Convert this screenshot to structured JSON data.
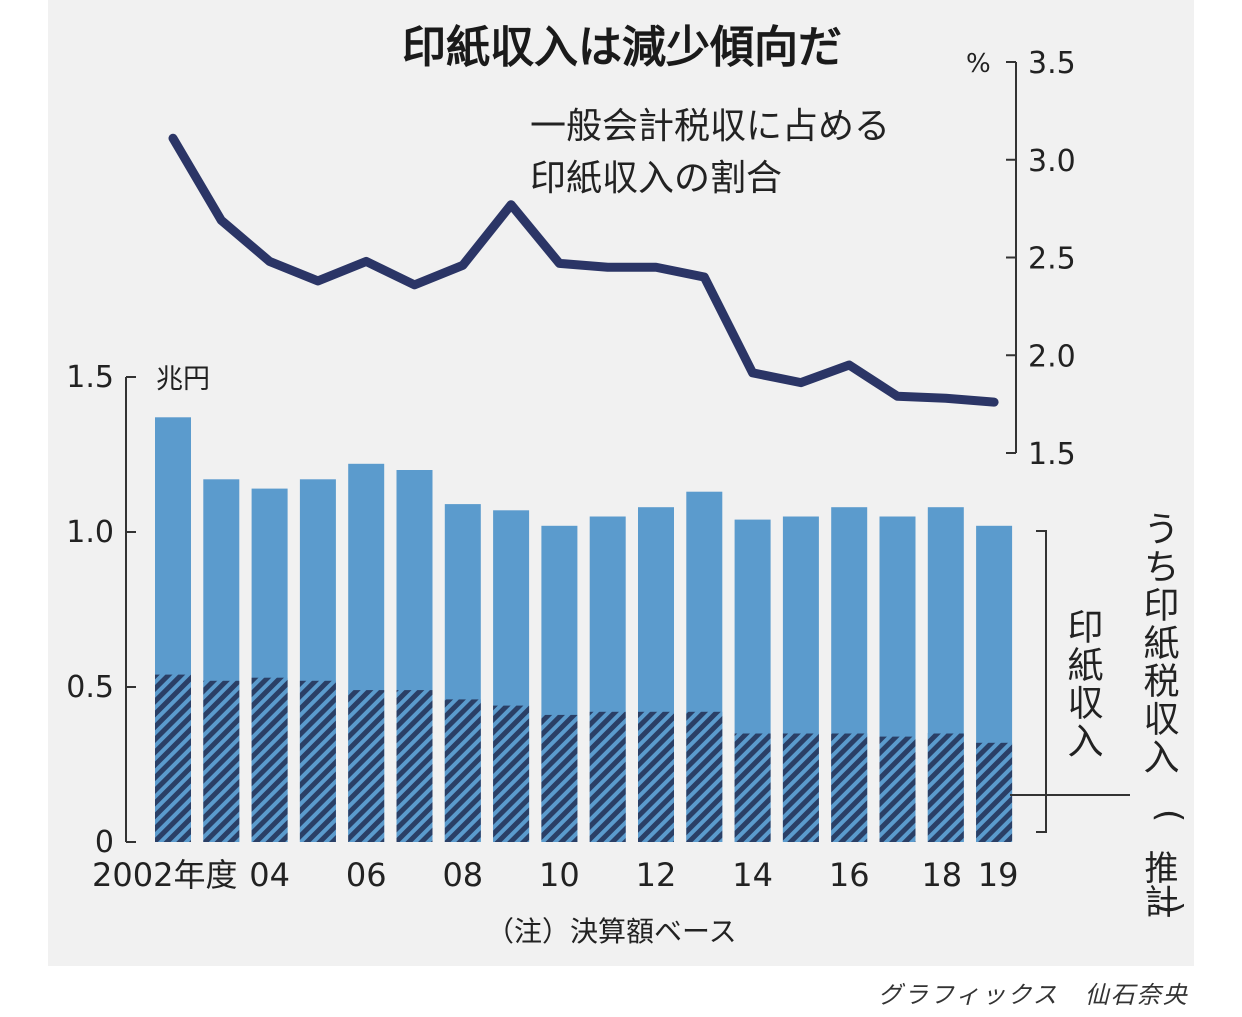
{
  "chart_data": {
    "title": "印紙収入は減少傾向だ",
    "type": "bar+line",
    "x_tick_labels": [
      "2002年度",
      "04",
      "06",
      "08",
      "10",
      "12",
      "14",
      "16",
      "18",
      "19"
    ],
    "years": [
      2002,
      2003,
      2004,
      2005,
      2006,
      2007,
      2008,
      2009,
      2010,
      2011,
      2012,
      2013,
      2014,
      2015,
      2016,
      2017,
      2018,
      2019
    ],
    "bar_axis": {
      "unit": "兆円",
      "ylim": [
        0,
        1.5
      ],
      "ticks": [
        "0",
        "0.5",
        "1.0",
        "1.5"
      ]
    },
    "line_axis": {
      "unit": "%",
      "ylim": [
        1.5,
        3.5
      ],
      "ticks": [
        "1.5",
        "2.0",
        "2.5",
        "3.0",
        "3.5"
      ]
    },
    "series": [
      {
        "name": "印紙収入",
        "type": "bar",
        "axis": "left",
        "values": [
          1.37,
          1.17,
          1.14,
          1.17,
          1.22,
          1.2,
          1.09,
          1.07,
          1.02,
          1.05,
          1.08,
          1.13,
          1.04,
          1.05,
          1.08,
          1.05,
          1.08,
          1.02
        ]
      },
      {
        "name": "うち印紙税収入（推計）",
        "type": "bar-hatched",
        "axis": "left",
        "values": [
          0.54,
          0.52,
          0.53,
          0.52,
          0.49,
          0.49,
          0.46,
          0.44,
          0.41,
          0.42,
          0.42,
          0.42,
          0.35,
          0.35,
          0.35,
          0.34,
          0.35,
          0.32
        ]
      },
      {
        "name": "一般会計税収に占める印紙収入の割合",
        "type": "line",
        "axis": "right",
        "values": [
          3.11,
          2.69,
          2.48,
          2.38,
          2.48,
          2.36,
          2.46,
          2.77,
          2.47,
          2.45,
          2.45,
          2.4,
          1.91,
          1.86,
          1.95,
          1.79,
          1.78,
          1.76
        ]
      }
    ],
    "labels": {
      "line_label_1": "一般会計税収に占める",
      "line_label_2": "印紙収入の割合",
      "bar_label": "印紙収入",
      "hatch_label": "うち印紙税収入",
      "hatch_label_note": "推計"
    },
    "note": "（注）決算額ベース",
    "colors": {
      "bar": "#5b9bcd",
      "hatch": "#2a3f66",
      "line": "#2b3566",
      "background": "#f1f1f1"
    }
  },
  "credit": "グラフィックス　仙石奈央"
}
